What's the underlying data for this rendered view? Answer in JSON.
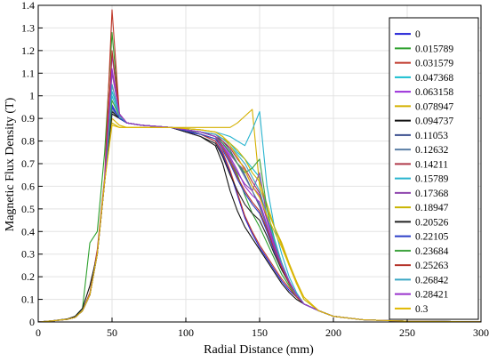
{
  "chart_data": {
    "type": "line",
    "title": "",
    "xlabel": "Radial Distance (mm)",
    "ylabel": "Magnetic Flux Density (T)",
    "xlim": [
      0,
      300
    ],
    "ylim": [
      0,
      1.4
    ],
    "xticks": [
      0,
      50,
      100,
      150,
      200,
      250,
      300
    ],
    "yticks": [
      0,
      0.1,
      0.2,
      0.3,
      0.4,
      0.5,
      0.6,
      0.7,
      0.8,
      0.9,
      1,
      1.1,
      1.2,
      1.3,
      1.4
    ],
    "grid": true,
    "legend_position": "right",
    "x": [
      0,
      10,
      20,
      25,
      30,
      35,
      40,
      45,
      50,
      55,
      60,
      70,
      80,
      90,
      100,
      110,
      120,
      125,
      130,
      135,
      140,
      145,
      150,
      155,
      160,
      165,
      170,
      175,
      180,
      190,
      200,
      220,
      250,
      300
    ],
    "series": [
      {
        "name": "0",
        "color": "#1f1fd6",
        "values": [
          0,
          0.005,
          0.012,
          0.02,
          0.05,
          0.12,
          0.3,
          0.62,
          0.95,
          0.9,
          0.88,
          0.87,
          0.865,
          0.86,
          0.84,
          0.83,
          0.8,
          0.74,
          0.66,
          0.56,
          0.46,
          0.39,
          0.33,
          0.28,
          0.23,
          0.18,
          0.14,
          0.11,
          0.08,
          0.05,
          0.025,
          0.01,
          0.003,
          0.001
        ]
      },
      {
        "name": "0.015789",
        "color": "#2ca02c",
        "values": [
          0,
          0.006,
          0.013,
          0.025,
          0.06,
          0.35,
          0.4,
          0.75,
          1.28,
          0.91,
          0.88,
          0.87,
          0.865,
          0.86,
          0.85,
          0.83,
          0.81,
          0.78,
          0.72,
          0.65,
          0.56,
          0.48,
          0.42,
          0.35,
          0.28,
          0.21,
          0.16,
          0.11,
          0.08,
          0.05,
          0.025,
          0.01,
          0.003,
          0.001
        ]
      },
      {
        "name": "0.031579",
        "color": "#c0392b",
        "values": [
          0,
          0.005,
          0.012,
          0.02,
          0.05,
          0.13,
          0.32,
          0.64,
          1.38,
          0.92,
          0.88,
          0.87,
          0.865,
          0.86,
          0.845,
          0.83,
          0.8,
          0.75,
          0.67,
          0.57,
          0.47,
          0.4,
          0.34,
          0.29,
          0.24,
          0.19,
          0.15,
          0.11,
          0.08,
          0.05,
          0.025,
          0.01,
          0.003,
          0.001
        ]
      },
      {
        "name": "0.047368",
        "color": "#17becf",
        "values": [
          0,
          0.005,
          0.012,
          0.02,
          0.05,
          0.12,
          0.3,
          0.62,
          1.02,
          0.92,
          0.88,
          0.87,
          0.865,
          0.86,
          0.85,
          0.84,
          0.83,
          0.81,
          0.79,
          0.75,
          0.72,
          0.68,
          0.64,
          0.5,
          0.37,
          0.26,
          0.18,
          0.12,
          0.08,
          0.05,
          0.025,
          0.01,
          0.003,
          0.001
        ]
      },
      {
        "name": "0.063158",
        "color": "#9b30d9",
        "values": [
          0,
          0.005,
          0.012,
          0.02,
          0.05,
          0.12,
          0.3,
          0.62,
          1.18,
          0.92,
          0.88,
          0.87,
          0.865,
          0.86,
          0.85,
          0.84,
          0.82,
          0.79,
          0.74,
          0.7,
          0.67,
          0.6,
          0.56,
          0.45,
          0.34,
          0.25,
          0.18,
          0.12,
          0.08,
          0.05,
          0.025,
          0.01,
          0.003,
          0.001
        ]
      },
      {
        "name": "0.078947",
        "color": "#d4b000",
        "values": [
          0,
          0.005,
          0.012,
          0.02,
          0.05,
          0.12,
          0.3,
          0.62,
          0.9,
          0.87,
          0.86,
          0.86,
          0.86,
          0.86,
          0.86,
          0.86,
          0.86,
          0.86,
          0.86,
          0.88,
          0.91,
          0.94,
          0.6,
          0.5,
          0.42,
          0.35,
          0.26,
          0.18,
          0.11,
          0.05,
          0.025,
          0.01,
          0.003,
          0.001
        ]
      },
      {
        "name": "0.094737",
        "color": "#111111",
        "values": [
          0,
          0.006,
          0.014,
          0.025,
          0.06,
          0.16,
          0.3,
          0.62,
          0.92,
          0.9,
          0.88,
          0.87,
          0.865,
          0.86,
          0.84,
          0.82,
          0.78,
          0.7,
          0.58,
          0.49,
          0.42,
          0.37,
          0.32,
          0.27,
          0.22,
          0.17,
          0.13,
          0.1,
          0.08,
          0.05,
          0.025,
          0.01,
          0.003,
          0.001
        ]
      },
      {
        "name": "0.11053",
        "color": "#3b4f8f",
        "values": [
          0,
          0.005,
          0.012,
          0.02,
          0.05,
          0.12,
          0.3,
          0.62,
          0.93,
          0.91,
          0.88,
          0.87,
          0.865,
          0.86,
          0.85,
          0.84,
          0.82,
          0.8,
          0.76,
          0.7,
          0.65,
          0.58,
          0.51,
          0.42,
          0.33,
          0.25,
          0.18,
          0.12,
          0.08,
          0.05,
          0.025,
          0.01,
          0.003,
          0.001
        ]
      },
      {
        "name": "0.12632",
        "color": "#5b7fa6",
        "values": [
          0,
          0.005,
          0.012,
          0.02,
          0.05,
          0.12,
          0.3,
          0.62,
          0.94,
          0.9,
          0.88,
          0.87,
          0.865,
          0.86,
          0.85,
          0.84,
          0.82,
          0.79,
          0.75,
          0.7,
          0.64,
          0.58,
          0.52,
          0.42,
          0.33,
          0.25,
          0.18,
          0.12,
          0.08,
          0.05,
          0.025,
          0.01,
          0.003,
          0.001
        ]
      },
      {
        "name": "0.14211",
        "color": "#b03a4a",
        "values": [
          0,
          0.005,
          0.012,
          0.02,
          0.05,
          0.12,
          0.3,
          0.62,
          1.05,
          0.91,
          0.88,
          0.87,
          0.865,
          0.86,
          0.85,
          0.84,
          0.83,
          0.8,
          0.77,
          0.72,
          0.68,
          0.62,
          0.57,
          0.46,
          0.35,
          0.26,
          0.18,
          0.12,
          0.08,
          0.05,
          0.025,
          0.01,
          0.003,
          0.001
        ]
      },
      {
        "name": "0.15789",
        "color": "#28b4cf",
        "values": [
          0,
          0.005,
          0.012,
          0.02,
          0.05,
          0.12,
          0.3,
          0.62,
          1.0,
          0.91,
          0.88,
          0.87,
          0.865,
          0.86,
          0.855,
          0.85,
          0.84,
          0.83,
          0.82,
          0.8,
          0.78,
          0.85,
          0.93,
          0.6,
          0.42,
          0.3,
          0.2,
          0.13,
          0.08,
          0.05,
          0.025,
          0.01,
          0.003,
          0.001
        ]
      },
      {
        "name": "0.17368",
        "color": "#8e44ad",
        "values": [
          0,
          0.005,
          0.012,
          0.02,
          0.05,
          0.12,
          0.3,
          0.62,
          1.1,
          0.92,
          0.88,
          0.87,
          0.865,
          0.86,
          0.85,
          0.84,
          0.82,
          0.78,
          0.72,
          0.66,
          0.61,
          0.58,
          0.66,
          0.46,
          0.35,
          0.26,
          0.18,
          0.12,
          0.08,
          0.05,
          0.025,
          0.01,
          0.003,
          0.001
        ]
      },
      {
        "name": "0.18947",
        "color": "#c9b400",
        "values": [
          0,
          0.005,
          0.012,
          0.02,
          0.05,
          0.12,
          0.3,
          0.62,
          0.88,
          0.86,
          0.86,
          0.86,
          0.86,
          0.86,
          0.855,
          0.85,
          0.84,
          0.82,
          0.79,
          0.76,
          0.72,
          0.66,
          0.62,
          0.52,
          0.42,
          0.34,
          0.25,
          0.17,
          0.1,
          0.05,
          0.025,
          0.01,
          0.003,
          0.001
        ]
      },
      {
        "name": "0.20526",
        "color": "#222222",
        "values": [
          0,
          0.005,
          0.012,
          0.02,
          0.05,
          0.12,
          0.3,
          0.62,
          0.93,
          0.9,
          0.88,
          0.87,
          0.865,
          0.86,
          0.84,
          0.82,
          0.79,
          0.73,
          0.65,
          0.58,
          0.52,
          0.48,
          0.45,
          0.38,
          0.3,
          0.23,
          0.17,
          0.12,
          0.08,
          0.05,
          0.025,
          0.01,
          0.003,
          0.001
        ]
      },
      {
        "name": "0.22105",
        "color": "#2b3fc8",
        "values": [
          0,
          0.005,
          0.012,
          0.02,
          0.05,
          0.12,
          0.3,
          0.62,
          0.96,
          0.9,
          0.88,
          0.87,
          0.865,
          0.86,
          0.845,
          0.83,
          0.81,
          0.76,
          0.7,
          0.63,
          0.57,
          0.52,
          0.48,
          0.4,
          0.31,
          0.24,
          0.17,
          0.12,
          0.08,
          0.05,
          0.025,
          0.01,
          0.003,
          0.001
        ]
      },
      {
        "name": "0.23684",
        "color": "#3fa33f",
        "values": [
          0,
          0.005,
          0.012,
          0.02,
          0.05,
          0.12,
          0.3,
          0.62,
          0.98,
          0.91,
          0.88,
          0.87,
          0.865,
          0.86,
          0.85,
          0.84,
          0.82,
          0.79,
          0.75,
          0.7,
          0.66,
          0.68,
          0.72,
          0.5,
          0.36,
          0.26,
          0.18,
          0.12,
          0.08,
          0.05,
          0.025,
          0.01,
          0.003,
          0.001
        ]
      },
      {
        "name": "0.25263",
        "color": "#b5332a",
        "values": [
          0,
          0.005,
          0.012,
          0.02,
          0.05,
          0.12,
          0.3,
          0.62,
          1.2,
          0.92,
          0.88,
          0.87,
          0.865,
          0.86,
          0.85,
          0.84,
          0.82,
          0.77,
          0.71,
          0.64,
          0.58,
          0.53,
          0.49,
          0.41,
          0.32,
          0.24,
          0.17,
          0.12,
          0.08,
          0.05,
          0.025,
          0.01,
          0.003,
          0.001
        ]
      },
      {
        "name": "0.26842",
        "color": "#3aa6c4",
        "values": [
          0,
          0.005,
          0.012,
          0.02,
          0.05,
          0.12,
          0.3,
          0.62,
          1.05,
          0.91,
          0.88,
          0.87,
          0.865,
          0.86,
          0.85,
          0.84,
          0.83,
          0.81,
          0.78,
          0.74,
          0.7,
          0.64,
          0.58,
          0.47,
          0.36,
          0.26,
          0.18,
          0.12,
          0.08,
          0.05,
          0.025,
          0.01,
          0.003,
          0.001
        ]
      },
      {
        "name": "0.28421",
        "color": "#9932cc",
        "values": [
          0,
          0.005,
          0.012,
          0.02,
          0.05,
          0.12,
          0.3,
          0.62,
          1.12,
          0.92,
          0.88,
          0.87,
          0.865,
          0.86,
          0.85,
          0.84,
          0.82,
          0.78,
          0.73,
          0.67,
          0.6,
          0.56,
          0.53,
          0.43,
          0.33,
          0.25,
          0.18,
          0.12,
          0.08,
          0.05,
          0.025,
          0.01,
          0.003,
          0.001
        ]
      },
      {
        "name": "0.3",
        "color": "#e0b800",
        "values": [
          0,
          0.005,
          0.012,
          0.02,
          0.05,
          0.12,
          0.3,
          0.62,
          0.87,
          0.86,
          0.86,
          0.86,
          0.86,
          0.86,
          0.855,
          0.85,
          0.84,
          0.82,
          0.78,
          0.73,
          0.67,
          0.6,
          0.55,
          0.47,
          0.4,
          0.33,
          0.25,
          0.17,
          0.11,
          0.05,
          0.025,
          0.01,
          0.003,
          0.001
        ]
      }
    ]
  }
}
